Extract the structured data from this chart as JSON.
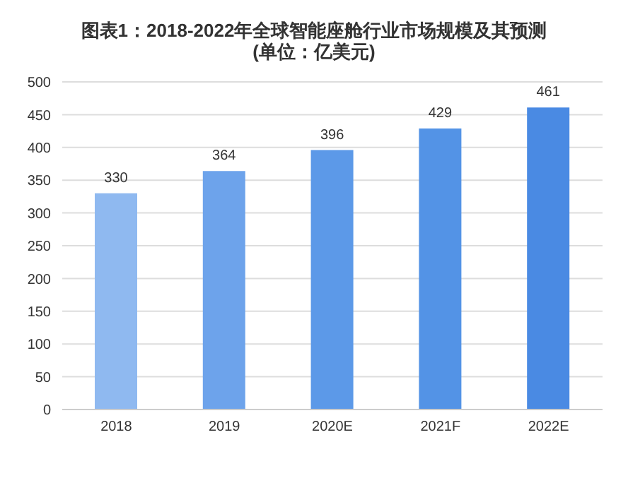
{
  "chart_data": {
    "type": "bar",
    "title": "图表1：2018-2022年全球智能座舱行业市场规模及其预测",
    "subtitle": "(单位：亿美元)",
    "categories": [
      "2018",
      "2019",
      "2020E",
      "2021F",
      "2022E"
    ],
    "values": [
      330,
      364,
      396,
      429,
      461
    ],
    "colors": [
      "#8fb9f0",
      "#6da3eb",
      "#5c99e8",
      "#5393e6",
      "#4a8ae3"
    ],
    "ylim": [
      0,
      500
    ],
    "yticks": [
      0,
      50,
      100,
      150,
      200,
      250,
      300,
      350,
      400,
      450,
      500
    ],
    "grid": "y",
    "data_labels": true
  }
}
